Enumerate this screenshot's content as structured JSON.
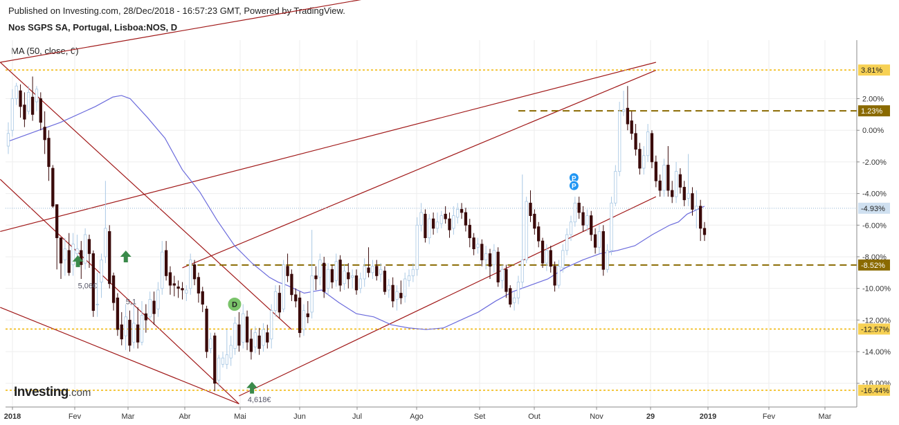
{
  "header": {
    "published": "Published on Investing.com, 28/Dec/2018 - 16:57:23 GMT, Powered by TradingView.",
    "symbol": "Nos SGPS SA, Portugal, Lisboa:NOS, D"
  },
  "indicator_label": "MA (50, close, 0)",
  "brand": {
    "name": "Investing",
    "suffix": ".com"
  },
  "colors": {
    "up_candle": "#a9c8e4",
    "down_candle": "#3a0a0a",
    "ma_line": "#6b6bdc",
    "trendline": "#a01818",
    "level_line_gold": "#f0b400",
    "level_line_olive": "#8a6a00",
    "marker_green": "#7ac36a",
    "marker_blue": "#2196f3",
    "arrow_green": "#3a8a4a"
  },
  "chart_data": {
    "type": "candlestick",
    "y_axis_unit": "%",
    "y_ticks": [
      "2.00%",
      "0.00%",
      "-2.00%",
      "-4.00%",
      "-6.00%",
      "-8.00%",
      "-10.00%",
      "-12.00%",
      "-14.00%",
      "-16.00%"
    ],
    "x_ticks": [
      "2018",
      "Fev",
      "Mar",
      "Abr",
      "Mai",
      "Jun",
      "Jul",
      "Ago",
      "Set",
      "Out",
      "Nov",
      "29",
      "2019",
      "Fev",
      "Mar"
    ],
    "y_range": [
      -17.5,
      5.7
    ],
    "moving_average": [
      [
        0,
        -0.7
      ],
      [
        3,
        0.5
      ],
      [
        5,
        1.5
      ],
      [
        6,
        2.1
      ],
      [
        6.5,
        2.2
      ],
      [
        7,
        2.0
      ],
      [
        8,
        0.8
      ],
      [
        9,
        -0.5
      ],
      [
        10,
        -2.5
      ],
      [
        11,
        -3.9
      ],
      [
        12,
        -5.7
      ],
      [
        13,
        -7.3
      ],
      [
        14,
        -8.4
      ],
      [
        15,
        -9.3
      ],
      [
        15.5,
        -9.6
      ],
      [
        16,
        -9.8
      ],
      [
        17,
        -10.3
      ],
      [
        18,
        -10.1
      ],
      [
        19,
        -10.9
      ],
      [
        20,
        -11.6
      ],
      [
        21,
        -11.8
      ],
      [
        22,
        -12.3
      ],
      [
        23,
        -12.5
      ],
      [
        24,
        -12.6
      ],
      [
        25,
        -12.5
      ],
      [
        26,
        -12.0
      ],
      [
        27,
        -11.5
      ],
      [
        28,
        -10.8
      ],
      [
        29,
        -10.2
      ],
      [
        30,
        -9.8
      ],
      [
        31,
        -9.4
      ],
      [
        32,
        -8.7
      ],
      [
        33,
        -8.2
      ],
      [
        34,
        -7.8
      ],
      [
        35,
        -7.6
      ],
      [
        36,
        -7.3
      ],
      [
        37,
        -6.6
      ],
      [
        38,
        -6.0
      ],
      [
        38.5,
        -5.8
      ],
      [
        39,
        -5.3
      ],
      [
        40,
        -4.8
      ]
    ],
    "candles": [
      [
        -1.0,
        -0.2,
        0.5,
        -1.5
      ],
      [
        0.0,
        2.0,
        2.6,
        -0.4
      ],
      [
        2.0,
        2.8,
        3.0,
        1.6
      ],
      [
        2.5,
        1.5,
        2.9,
        0.8
      ],
      [
        1.6,
        0.7,
        2.4,
        0.2
      ],
      [
        1.2,
        2.4,
        2.8,
        1.0
      ],
      [
        2.1,
        1.0,
        3.4,
        0.6
      ],
      [
        1.8,
        2.6,
        2.8,
        1.2
      ],
      [
        2.0,
        0.5,
        2.4,
        0.0
      ],
      [
        0.2,
        -0.6,
        1.2,
        -1.5
      ],
      [
        -0.5,
        -2.3,
        0.0,
        -3.2
      ],
      [
        -2.4,
        -4.8,
        -2.2,
        -4.9
      ],
      [
        -4.7,
        -6.8,
        -5.5,
        -8.8
      ],
      [
        -6.8,
        -8.4,
        -7.2,
        -9.4
      ],
      [
        -8.2,
        -7.5,
        -6.8,
        -9.2
      ],
      [
        -7.6,
        -9.0,
        -6.5,
        -9.2
      ],
      [
        -8.5,
        -7.2,
        -6.5,
        -9.2
      ],
      [
        -7.8,
        -7.5,
        -6.6,
        -8.5
      ],
      [
        -7.6,
        -8.5,
        -7.0,
        -9.4
      ],
      [
        -8.4,
        -6.6,
        -6.2,
        -8.8
      ],
      [
        -6.9,
        -7.8,
        -6.6,
        -8.7
      ],
      [
        -7.8,
        -11.4,
        -7.6,
        -11.8
      ],
      [
        -11.0,
        -11.0,
        -9.0,
        -11.8
      ],
      [
        -9.6,
        -8.2,
        -7.8,
        -10.6
      ],
      [
        -8.0,
        -6.2,
        -3.2,
        -8.4
      ],
      [
        -6.4,
        -9.7,
        -6.0,
        -10.0
      ],
      [
        -9.2,
        -10.9,
        -9.0,
        -11.4
      ],
      [
        -10.6,
        -12.6,
        -10.3,
        -13.0
      ],
      [
        -12.3,
        -13.2,
        -11.5,
        -13.6
      ],
      [
        -13.0,
        -11.8,
        -11.0,
        -13.9
      ],
      [
        -12.0,
        -13.6,
        -11.4,
        -14.0
      ],
      [
        -13.4,
        -12.2,
        -11.0,
        -13.8
      ],
      [
        -12.3,
        -13.4,
        -11.2,
        -13.8
      ],
      [
        -13.4,
        -11.7,
        -10.8,
        -13.6
      ],
      [
        -11.6,
        -12.0,
        -11.0,
        -12.8
      ],
      [
        -11.8,
        -10.7,
        -10.2,
        -12.0
      ],
      [
        -10.8,
        -11.6,
        -10.2,
        -12.3
      ],
      [
        -11.3,
        -10.1,
        -9.6,
        -11.8
      ],
      [
        -10.0,
        -7.7,
        -7.0,
        -10.4
      ],
      [
        -7.6,
        -9.2,
        -7.0,
        -9.5
      ],
      [
        -9.0,
        -9.8,
        -8.6,
        -10.4
      ],
      [
        -9.7,
        -9.8,
        -9.2,
        -10.5
      ],
      [
        -9.9,
        -10.0,
        -9.5,
        -10.6
      ],
      [
        -10.0,
        -10.1,
        -9.6,
        -10.7
      ],
      [
        -10.3,
        -10.1,
        -9.8,
        -10.8
      ],
      [
        -10.0,
        -8.2,
        -7.8,
        -10.4
      ],
      [
        -8.5,
        -9.4,
        -8.2,
        -9.8
      ],
      [
        -9.3,
        -10.3,
        -9.0,
        -10.9
      ],
      [
        -10.2,
        -11.0,
        -9.9,
        -11.5
      ],
      [
        -11.3,
        -14.0,
        -11.1,
        -14.4
      ],
      [
        -13.8,
        -13.2,
        -12.8,
        -14.1
      ],
      [
        -13.0,
        -16.0,
        -12.8,
        -16.5
      ],
      [
        -15.8,
        -14.4,
        -14.2,
        -16.2
      ],
      [
        -14.8,
        -14.4,
        -14.0,
        -15.0
      ],
      [
        -14.8,
        -14.2,
        -12.6,
        -15.1
      ],
      [
        -14.4,
        -13.6,
        -13.0,
        -14.9
      ],
      [
        -13.8,
        -12.2,
        -11.8,
        -14.2
      ],
      [
        -12.3,
        -13.6,
        -11.5,
        -14.0
      ],
      [
        -13.4,
        -11.6,
        -11.0,
        -13.8
      ],
      [
        -11.8,
        -13.4,
        -11.4,
        -13.9
      ],
      [
        -13.2,
        -14.0,
        -12.6,
        -14.5
      ],
      [
        -13.7,
        -12.8,
        -12.4,
        -14.1
      ],
      [
        -13.0,
        -13.8,
        -12.5,
        -14.2
      ],
      [
        -13.6,
        -12.6,
        -12.2,
        -14.0
      ],
      [
        -12.8,
        -13.4,
        -12.3,
        -13.8
      ],
      [
        -13.2,
        -11.4,
        -11.0,
        -13.8
      ],
      [
        -11.4,
        -10.2,
        -9.8,
        -11.8
      ],
      [
        -10.3,
        -11.5,
        -9.8,
        -11.9
      ],
      [
        -11.3,
        -8.5,
        -8.2,
        -11.5
      ],
      [
        -8.6,
        -9.2,
        -7.8,
        -9.6
      ],
      [
        -9.1,
        -10.4,
        -8.8,
        -10.8
      ],
      [
        -10.4,
        -10.8,
        -10.0,
        -11.2
      ],
      [
        -10.6,
        -12.8,
        -10.2,
        -13.1
      ],
      [
        -12.6,
        -11.4,
        -11.0,
        -13.0
      ],
      [
        -11.6,
        -11.8,
        -10.8,
        -12.2
      ],
      [
        -11.5,
        -9.2,
        -6.3,
        -11.9
      ],
      [
        -9.2,
        -9.4,
        -8.6,
        -10.1
      ],
      [
        -9.3,
        -8.2,
        -7.8,
        -9.8
      ],
      [
        -8.4,
        -10.2,
        -8.0,
        -10.6
      ],
      [
        -10.0,
        -8.8,
        -8.4,
        -10.4
      ],
      [
        -8.8,
        -9.6,
        -8.5,
        -10.0
      ],
      [
        -9.5,
        -8.3,
        -7.8,
        -9.9
      ],
      [
        -8.2,
        -9.8,
        -7.9,
        -10.2
      ],
      [
        -9.7,
        -8.9,
        -8.5,
        -10.1
      ],
      [
        -9.0,
        -9.4,
        -8.4,
        -10.0
      ],
      [
        -9.3,
        -9.2,
        -8.8,
        -10.0
      ],
      [
        -9.2,
        -10.1,
        -8.8,
        -10.4
      ],
      [
        -10.0,
        -9.4,
        -9.0,
        -10.3
      ],
      [
        -9.4,
        -8.6,
        -8.1,
        -9.9
      ],
      [
        -8.7,
        -9.0,
        -7.4,
        -9.3
      ],
      [
        -9.0,
        -8.6,
        -8.2,
        -9.4
      ],
      [
        -8.6,
        -9.2,
        -8.2,
        -9.5
      ],
      [
        -9.1,
        -8.8,
        -8.4,
        -9.6
      ],
      [
        -8.9,
        -10.2,
        -8.6,
        -10.4
      ],
      [
        -10.1,
        -9.8,
        -9.4,
        -10.6
      ],
      [
        -9.8,
        -10.8,
        -9.3,
        -11.2
      ],
      [
        -10.7,
        -10.2,
        -9.8,
        -11.4
      ],
      [
        -10.3,
        -10.6,
        -9.5,
        -11.0
      ],
      [
        -10.5,
        -9.4,
        -9.0,
        -10.9
      ],
      [
        -9.5,
        -9.2,
        -8.8,
        -9.9
      ],
      [
        -9.2,
        -8.8,
        -8.4,
        -9.6
      ],
      [
        -8.8,
        -6.0,
        -5.5,
        -9.2
      ],
      [
        -6.0,
        -5.2,
        -4.6,
        -6.4
      ],
      [
        -5.3,
        -6.8,
        -5.0,
        -7.1
      ],
      [
        -6.8,
        -5.6,
        -5.3,
        -7.2
      ],
      [
        -5.6,
        -6.2,
        -5.2,
        -6.6
      ],
      [
        -6.2,
        -5.8,
        -5.2,
        -6.5
      ],
      [
        -5.9,
        -5.4,
        -5.1,
        -6.2
      ],
      [
        -5.3,
        -5.6,
        -4.8,
        -5.9
      ],
      [
        -5.6,
        -6.3,
        -5.2,
        -6.8
      ],
      [
        -6.2,
        -5.4,
        -4.8,
        -6.6
      ],
      [
        -5.5,
        -5.0,
        -4.6,
        -5.9
      ],
      [
        -5.0,
        -5.2,
        -4.6,
        -5.6
      ],
      [
        -5.2,
        -6.0,
        -4.9,
        -6.4
      ],
      [
        -6.0,
        -6.8,
        -5.6,
        -7.4
      ],
      [
        -6.8,
        -7.5,
        -6.5,
        -7.9
      ],
      [
        -7.4,
        -7.2,
        -6.8,
        -7.8
      ],
      [
        -7.2,
        -8.2,
        -6.9,
        -8.6
      ],
      [
        -8.2,
        -7.8,
        -7.3,
        -8.8
      ],
      [
        -7.8,
        -8.6,
        -7.5,
        -9.4
      ],
      [
        -8.5,
        -7.6,
        -7.2,
        -9.0
      ],
      [
        -7.7,
        -9.6,
        -7.4,
        -9.9
      ],
      [
        -9.5,
        -8.8,
        -8.5,
        -10.0
      ],
      [
        -8.8,
        -10.2,
        -8.5,
        -10.6
      ],
      [
        -10.0,
        -11.0,
        -9.8,
        -11.2
      ],
      [
        -10.9,
        -10.6,
        -10.2,
        -11.4
      ],
      [
        -10.6,
        -9.6,
        -9.2,
        -11.0
      ],
      [
        -9.6,
        -8.2,
        -2.8,
        -10.0
      ],
      [
        -8.2,
        -4.5,
        -4.2,
        -8.4
      ],
      [
        -4.6,
        -5.4,
        -3.8,
        -5.8
      ],
      [
        -5.3,
        -6.2,
        -5.0,
        -6.6
      ],
      [
        -6.1,
        -7.0,
        -5.8,
        -7.4
      ],
      [
        -7.0,
        -8.4,
        -6.8,
        -8.7
      ],
      [
        -8.4,
        -7.6,
        -7.2,
        -8.9
      ],
      [
        -7.6,
        -8.6,
        -7.3,
        -9.0
      ],
      [
        -8.6,
        -9.8,
        -8.3,
        -10.2
      ],
      [
        -9.8,
        -8.6,
        -8.2,
        -10.0
      ],
      [
        -8.7,
        -7.6,
        -7.2,
        -9.0
      ],
      [
        -7.6,
        -6.6,
        -6.2,
        -7.9
      ],
      [
        -6.6,
        -5.8,
        -5.4,
        -7.0
      ],
      [
        -5.8,
        -4.6,
        -4.2,
        -6.1
      ],
      [
        -4.6,
        -5.2,
        -4.2,
        -5.6
      ],
      [
        -5.2,
        -6.0,
        -4.8,
        -6.4
      ],
      [
        -6.0,
        -5.4,
        -5.0,
        -6.4
      ],
      [
        -5.4,
        -6.6,
        -5.1,
        -7.0
      ],
      [
        -6.6,
        -7.4,
        -6.2,
        -7.8
      ],
      [
        -7.4,
        -6.4,
        -6.0,
        -7.8
      ],
      [
        -6.4,
        -8.8,
        -6.0,
        -9.2
      ],
      [
        -8.8,
        -7.6,
        -7.2,
        -9.0
      ],
      [
        -7.6,
        -4.6,
        -4.2,
        -7.9
      ],
      [
        -4.6,
        -2.6,
        -2.2,
        -4.8
      ],
      [
        -2.6,
        1.2,
        1.8,
        -2.9
      ],
      [
        1.2,
        1.3,
        2.5,
        0.9
      ],
      [
        1.4,
        0.4,
        2.8,
        0.0
      ],
      [
        0.6,
        -0.2,
        1.2,
        -0.6
      ],
      [
        -0.2,
        -1.2,
        0.4,
        -1.6
      ],
      [
        -1.2,
        -2.4,
        -0.8,
        -2.8
      ],
      [
        -2.4,
        -1.6,
        -1.0,
        -2.8
      ],
      [
        -1.6,
        -0.1,
        0.4,
        -2.0
      ],
      [
        -0.2,
        -2.0,
        0.0,
        -2.4
      ],
      [
        -2.0,
        -3.2,
        -1.6,
        -3.6
      ],
      [
        -3.2,
        -3.8,
        -2.8,
        -4.2
      ],
      [
        -3.8,
        -2.2,
        -1.8,
        -4.2
      ],
      [
        -2.2,
        -3.8,
        -1.0,
        -4.2
      ],
      [
        -3.8,
        -4.2,
        -3.2,
        -4.6
      ],
      [
        -4.2,
        -2.6,
        -2.0,
        -4.6
      ],
      [
        -2.8,
        -3.6,
        -2.4,
        -4.0
      ],
      [
        -3.6,
        -4.4,
        -3.2,
        -4.8
      ],
      [
        -4.3,
        -4.0,
        -1.5,
        -4.8
      ],
      [
        -4.0,
        -5.0,
        -3.6,
        -5.4
      ],
      [
        -5.0,
        -4.8,
        -3.8,
        -6.2
      ],
      [
        -4.8,
        -6.2,
        -4.4,
        -7.0
      ],
      [
        -6.2,
        -6.6,
        -5.8,
        -7.0
      ]
    ],
    "horizontal_levels": [
      {
        "label": "3.81%",
        "value": 3.81,
        "style": "gold-dotted"
      },
      {
        "label": "1.23%",
        "value": 1.23,
        "style": "olive-dashed"
      },
      {
        "label": "-4.93%",
        "value": -4.93,
        "style": "current-price"
      },
      {
        "label": "-8.52%",
        "value": -8.52,
        "style": "olive-dashed"
      },
      {
        "label": "-12.57%",
        "value": -12.57,
        "style": "gold-dotted"
      },
      {
        "label": "-16.44%",
        "value": -16.44,
        "style": "gold-dotted"
      }
    ],
    "annotations": [
      {
        "text": "5,06€",
        "x": 16,
        "y": -10.0
      },
      {
        "text": "5,1",
        "x": 27,
        "y": -11.0
      },
      {
        "text": "4,618€",
        "x": 55,
        "y": -17.2
      }
    ],
    "markers": [
      {
        "type": "arrow-up",
        "x": 16,
        "y": -8.3
      },
      {
        "type": "arrow-up",
        "x": 27,
        "y": -8.0
      },
      {
        "type": "arrow-up",
        "x": 56,
        "y": -16.3
      },
      {
        "type": "circle",
        "text": "D",
        "x": 52,
        "y": -11.0
      },
      {
        "type": "circle",
        "text": "P",
        "x": 130,
        "y": -3.0
      },
      {
        "type": "circle",
        "text": "P",
        "x": 130,
        "y": -3.5
      }
    ]
  }
}
